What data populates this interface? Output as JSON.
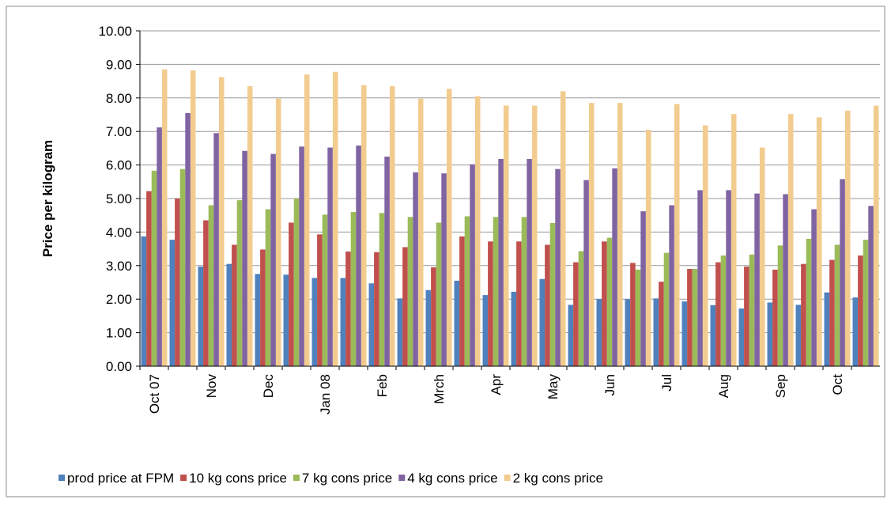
{
  "chart_data": {
    "type": "bar",
    "y_label": "Price per kilogram",
    "categories": [
      "Oct  07",
      null,
      "Nov",
      null,
      "Dec",
      null,
      "Jan 08",
      null,
      "Feb",
      null,
      "Mrch",
      null,
      "Apr",
      null,
      "May",
      null,
      "Jun",
      null,
      "Jul",
      null,
      "Aug",
      null,
      "Sep",
      null,
      "Oct",
      null
    ],
    "series": [
      {
        "name": "prod price at FPM",
        "color": "#4f81bd",
        "values": [
          3.87,
          3.77,
          2.97,
          3.05,
          2.75,
          2.73,
          2.63,
          2.63,
          2.47,
          2.02,
          2.27,
          2.55,
          2.12,
          2.22,
          2.6,
          1.83,
          2.0,
          2.0,
          2.02,
          1.93,
          1.82,
          1.72,
          1.9,
          1.83,
          2.2,
          2.05
        ]
      },
      {
        "name": "10 kg cons price",
        "color": "#c0504d",
        "values": [
          5.22,
          5.0,
          4.35,
          3.62,
          3.48,
          4.28,
          3.93,
          3.42,
          3.4,
          3.55,
          2.95,
          3.87,
          3.72,
          3.72,
          3.62,
          3.1,
          3.72,
          3.08,
          2.52,
          2.9,
          3.1,
          2.97,
          2.88,
          3.05,
          3.17,
          3.3
        ]
      },
      {
        "name": "7 kg cons price",
        "color": "#9bbb59",
        "values": [
          5.83,
          5.88,
          4.8,
          4.95,
          4.68,
          5.0,
          4.52,
          4.6,
          4.57,
          4.45,
          4.28,
          4.47,
          4.45,
          4.45,
          4.27,
          3.43,
          3.83,
          2.88,
          3.38,
          2.9,
          3.3,
          3.33,
          3.6,
          3.8,
          3.62,
          3.77
        ]
      },
      {
        "name": "4 kg cons price",
        "color": "#8064a2",
        "values": [
          7.12,
          7.55,
          6.95,
          6.42,
          6.33,
          6.55,
          6.52,
          6.58,
          6.25,
          5.78,
          5.75,
          6.02,
          6.18,
          6.18,
          5.88,
          5.55,
          5.9,
          4.62,
          4.8,
          5.25,
          5.25,
          5.15,
          5.13,
          4.68,
          5.58,
          4.78
        ]
      },
      {
        "name": "2 kg cons price",
        "color": "#f2cc8f",
        "values": [
          8.85,
          8.82,
          8.62,
          8.35,
          7.98,
          8.7,
          8.78,
          8.38,
          8.35,
          7.98,
          8.27,
          8.05,
          7.77,
          7.77,
          8.2,
          7.85,
          7.85,
          7.05,
          7.82,
          7.18,
          7.52,
          6.52,
          7.52,
          7.42,
          7.62,
          7.77
        ]
      }
    ],
    "ylim": [
      0,
      10
    ],
    "yticks": [
      {
        "value": 0,
        "label": "0.00"
      },
      {
        "value": 1,
        "label": "1.00"
      },
      {
        "value": 2,
        "label": "2.00"
      },
      {
        "value": 3,
        "label": "3.00"
      },
      {
        "value": 4,
        "label": "4.00"
      },
      {
        "value": 5,
        "label": "5.00"
      },
      {
        "value": 6,
        "label": "6.00"
      },
      {
        "value": 7,
        "label": "7.00"
      },
      {
        "value": 8,
        "label": "8.00"
      },
      {
        "value": 9,
        "label": "9.00"
      },
      {
        "value": 10,
        "label": "10.00"
      }
    ],
    "grid": true,
    "legend": "bottom"
  }
}
